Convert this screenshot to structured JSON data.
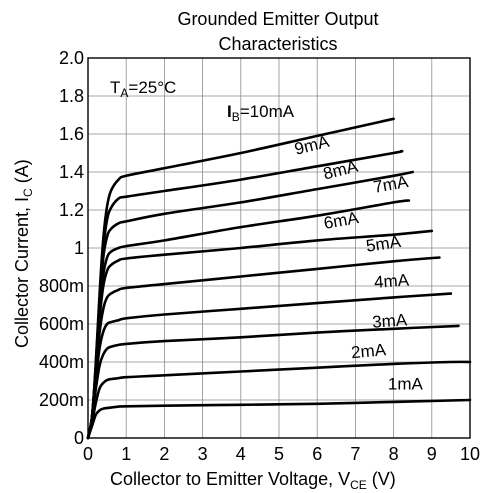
{
  "chart_data": {
    "type": "line",
    "title": "Grounded Emitter Output",
    "subtitle": "Characteristics",
    "xlabel": {
      "main": "Collector to Emitter Voltage, V",
      "sub": "CE",
      "unit": " (V)"
    },
    "ylabel": {
      "main": "Collector Current, I",
      "sub": "C",
      "unit": " (A)"
    },
    "xlim": [
      0,
      10
    ],
    "ylim": [
      0,
      2.0
    ],
    "grid": true,
    "x_ticks": [
      0,
      1,
      2,
      3,
      4,
      5,
      6,
      7,
      8,
      9,
      10
    ],
    "x_tick_labels": [
      "0",
      "1",
      "2",
      "3",
      "4",
      "5",
      "6",
      "7",
      "8",
      "9",
      "10"
    ],
    "y_ticks": [
      0,
      0.2,
      0.4,
      0.6,
      0.8,
      1.0,
      1.2,
      1.4,
      1.6,
      1.8,
      2.0
    ],
    "y_tick_labels": [
      "0",
      "200m",
      "400m",
      "600m",
      "800m",
      "1",
      "1.2",
      "1.4",
      "1.6",
      "1.8",
      "2.0"
    ],
    "annotations": {
      "temp": {
        "main": "T",
        "sub": "A",
        "rest": "=25°C"
      },
      "base": {
        "main": "I",
        "sub": "B",
        "rest": "=10mA"
      }
    },
    "series": [
      {
        "name": "1mA",
        "label_pos": [
          7.85,
          0.255
        ],
        "label_rot": 0,
        "x": [
          0,
          0.1,
          0.2,
          0.3,
          0.4,
          0.6,
          0.8,
          1.0,
          2,
          4,
          6,
          8,
          10
        ],
        "y": [
          0,
          0.06,
          0.12,
          0.145,
          0.155,
          0.16,
          0.165,
          0.167,
          0.17,
          0.175,
          0.18,
          0.19,
          0.2
        ]
      },
      {
        "name": "2mA",
        "label_pos": [
          6.9,
          0.42
        ],
        "label_rot": -5,
        "x": [
          0,
          0.1,
          0.2,
          0.3,
          0.4,
          0.5,
          0.6,
          0.8,
          1.0,
          2,
          4,
          6,
          8,
          9.5,
          10
        ],
        "y": [
          0,
          0.08,
          0.18,
          0.26,
          0.29,
          0.305,
          0.31,
          0.315,
          0.32,
          0.33,
          0.35,
          0.37,
          0.39,
          0.4,
          0.4
        ]
      },
      {
        "name": "3mA",
        "label_pos": [
          7.45,
          0.58
        ],
        "label_rot": -4,
        "x": [
          0,
          0.1,
          0.2,
          0.3,
          0.4,
          0.5,
          0.6,
          0.8,
          1.0,
          2,
          4,
          6,
          8,
          9.7
        ],
        "y": [
          0,
          0.1,
          0.25,
          0.38,
          0.44,
          0.47,
          0.48,
          0.49,
          0.495,
          0.51,
          0.53,
          0.555,
          0.575,
          0.59
        ]
      },
      {
        "name": "4mA",
        "label_pos": [
          7.5,
          0.79
        ],
        "label_rot": -4,
        "x": [
          0,
          0.1,
          0.2,
          0.3,
          0.4,
          0.5,
          0.6,
          0.8,
          1.0,
          2,
          4,
          6,
          8,
          9.5
        ],
        "y": [
          0,
          0.1,
          0.3,
          0.47,
          0.56,
          0.6,
          0.61,
          0.62,
          0.63,
          0.65,
          0.68,
          0.71,
          0.74,
          0.76
        ]
      },
      {
        "name": "5mA",
        "label_pos": [
          7.3,
          0.98
        ],
        "label_rot": -8,
        "x": [
          0,
          0.1,
          0.2,
          0.3,
          0.4,
          0.5,
          0.6,
          0.8,
          1.0,
          2,
          4,
          6,
          8,
          9.2
        ],
        "y": [
          0,
          0.1,
          0.32,
          0.55,
          0.68,
          0.74,
          0.76,
          0.78,
          0.79,
          0.81,
          0.85,
          0.89,
          0.93,
          0.95
        ]
      },
      {
        "name": "6mA",
        "label_pos": [
          6.2,
          1.1
        ],
        "label_rot": -10,
        "x": [
          0,
          0.1,
          0.2,
          0.3,
          0.4,
          0.5,
          0.6,
          0.8,
          1.0,
          2,
          4,
          6,
          8,
          9.0
        ],
        "y": [
          0,
          0.1,
          0.35,
          0.62,
          0.8,
          0.88,
          0.91,
          0.935,
          0.945,
          0.965,
          1.0,
          1.04,
          1.07,
          1.09
        ]
      },
      {
        "name": "7mA",
        "label_pos": [
          7.5,
          1.29
        ],
        "label_rot": -10,
        "x": [
          0,
          0.1,
          0.2,
          0.3,
          0.4,
          0.5,
          0.6,
          0.8,
          1.0,
          2,
          4,
          6,
          8,
          8.4
        ],
        "y": [
          0,
          0.1,
          0.35,
          0.65,
          0.86,
          0.95,
          0.98,
          1.0,
          1.01,
          1.04,
          1.11,
          1.17,
          1.24,
          1.25
        ]
      },
      {
        "name": "8mA",
        "label_pos": [
          6.2,
          1.36
        ],
        "label_rot": -14,
        "x": [
          0,
          0.1,
          0.2,
          0.3,
          0.4,
          0.5,
          0.6,
          0.8,
          1.0,
          2,
          4,
          6,
          8,
          8.5
        ],
        "y": [
          0,
          0.1,
          0.36,
          0.7,
          0.95,
          1.06,
          1.1,
          1.13,
          1.14,
          1.18,
          1.24,
          1.31,
          1.38,
          1.4
        ]
      },
      {
        "name": "9mA",
        "label_pos": [
          5.45,
          1.49
        ],
        "label_rot": -14,
        "x": [
          0,
          0.1,
          0.2,
          0.3,
          0.4,
          0.5,
          0.6,
          0.8,
          1.0,
          2,
          4,
          6,
          8,
          8.2
        ],
        "y": [
          0,
          0.1,
          0.36,
          0.72,
          1.0,
          1.15,
          1.21,
          1.26,
          1.27,
          1.3,
          1.36,
          1.43,
          1.5,
          1.51
        ]
      },
      {
        "name": "10mA",
        "label_pos": null,
        "label_rot": 0,
        "x": [
          0,
          0.1,
          0.2,
          0.3,
          0.4,
          0.5,
          0.6,
          0.8,
          1.0,
          2,
          4,
          6,
          8
        ],
        "y": [
          0,
          0.1,
          0.38,
          0.75,
          1.05,
          1.22,
          1.3,
          1.36,
          1.38,
          1.42,
          1.5,
          1.59,
          1.68
        ]
      }
    ]
  }
}
